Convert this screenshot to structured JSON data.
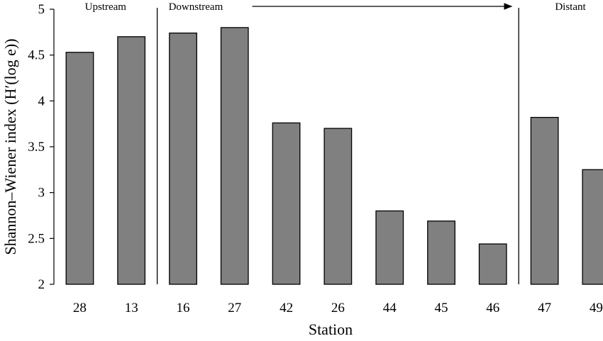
{
  "chart_data": {
    "type": "bar",
    "categories": [
      "28",
      "13",
      "16",
      "27",
      "42",
      "26",
      "44",
      "45",
      "46",
      "47",
      "49"
    ],
    "values": [
      4.53,
      4.7,
      4.74,
      4.8,
      3.76,
      3.7,
      2.8,
      2.69,
      2.44,
      3.82,
      3.25
    ],
    "xlabel": "Station",
    "ylabel": "Shannon–Wiener index (H′(log e))",
    "ylim": [
      2,
      5
    ],
    "yticks": [
      "2",
      "2.5",
      "3",
      "3.5",
      "4",
      "4.5",
      "5"
    ],
    "grid": false,
    "bar_color": "#808080",
    "regions": [
      {
        "label": "Upstream",
        "start_index": 0,
        "end_index": 1
      },
      {
        "label": "Downstream",
        "start_index": 2,
        "end_index": 8,
        "arrow": true
      },
      {
        "label": "Distant",
        "start_index": 9,
        "end_index": 10
      }
    ]
  }
}
